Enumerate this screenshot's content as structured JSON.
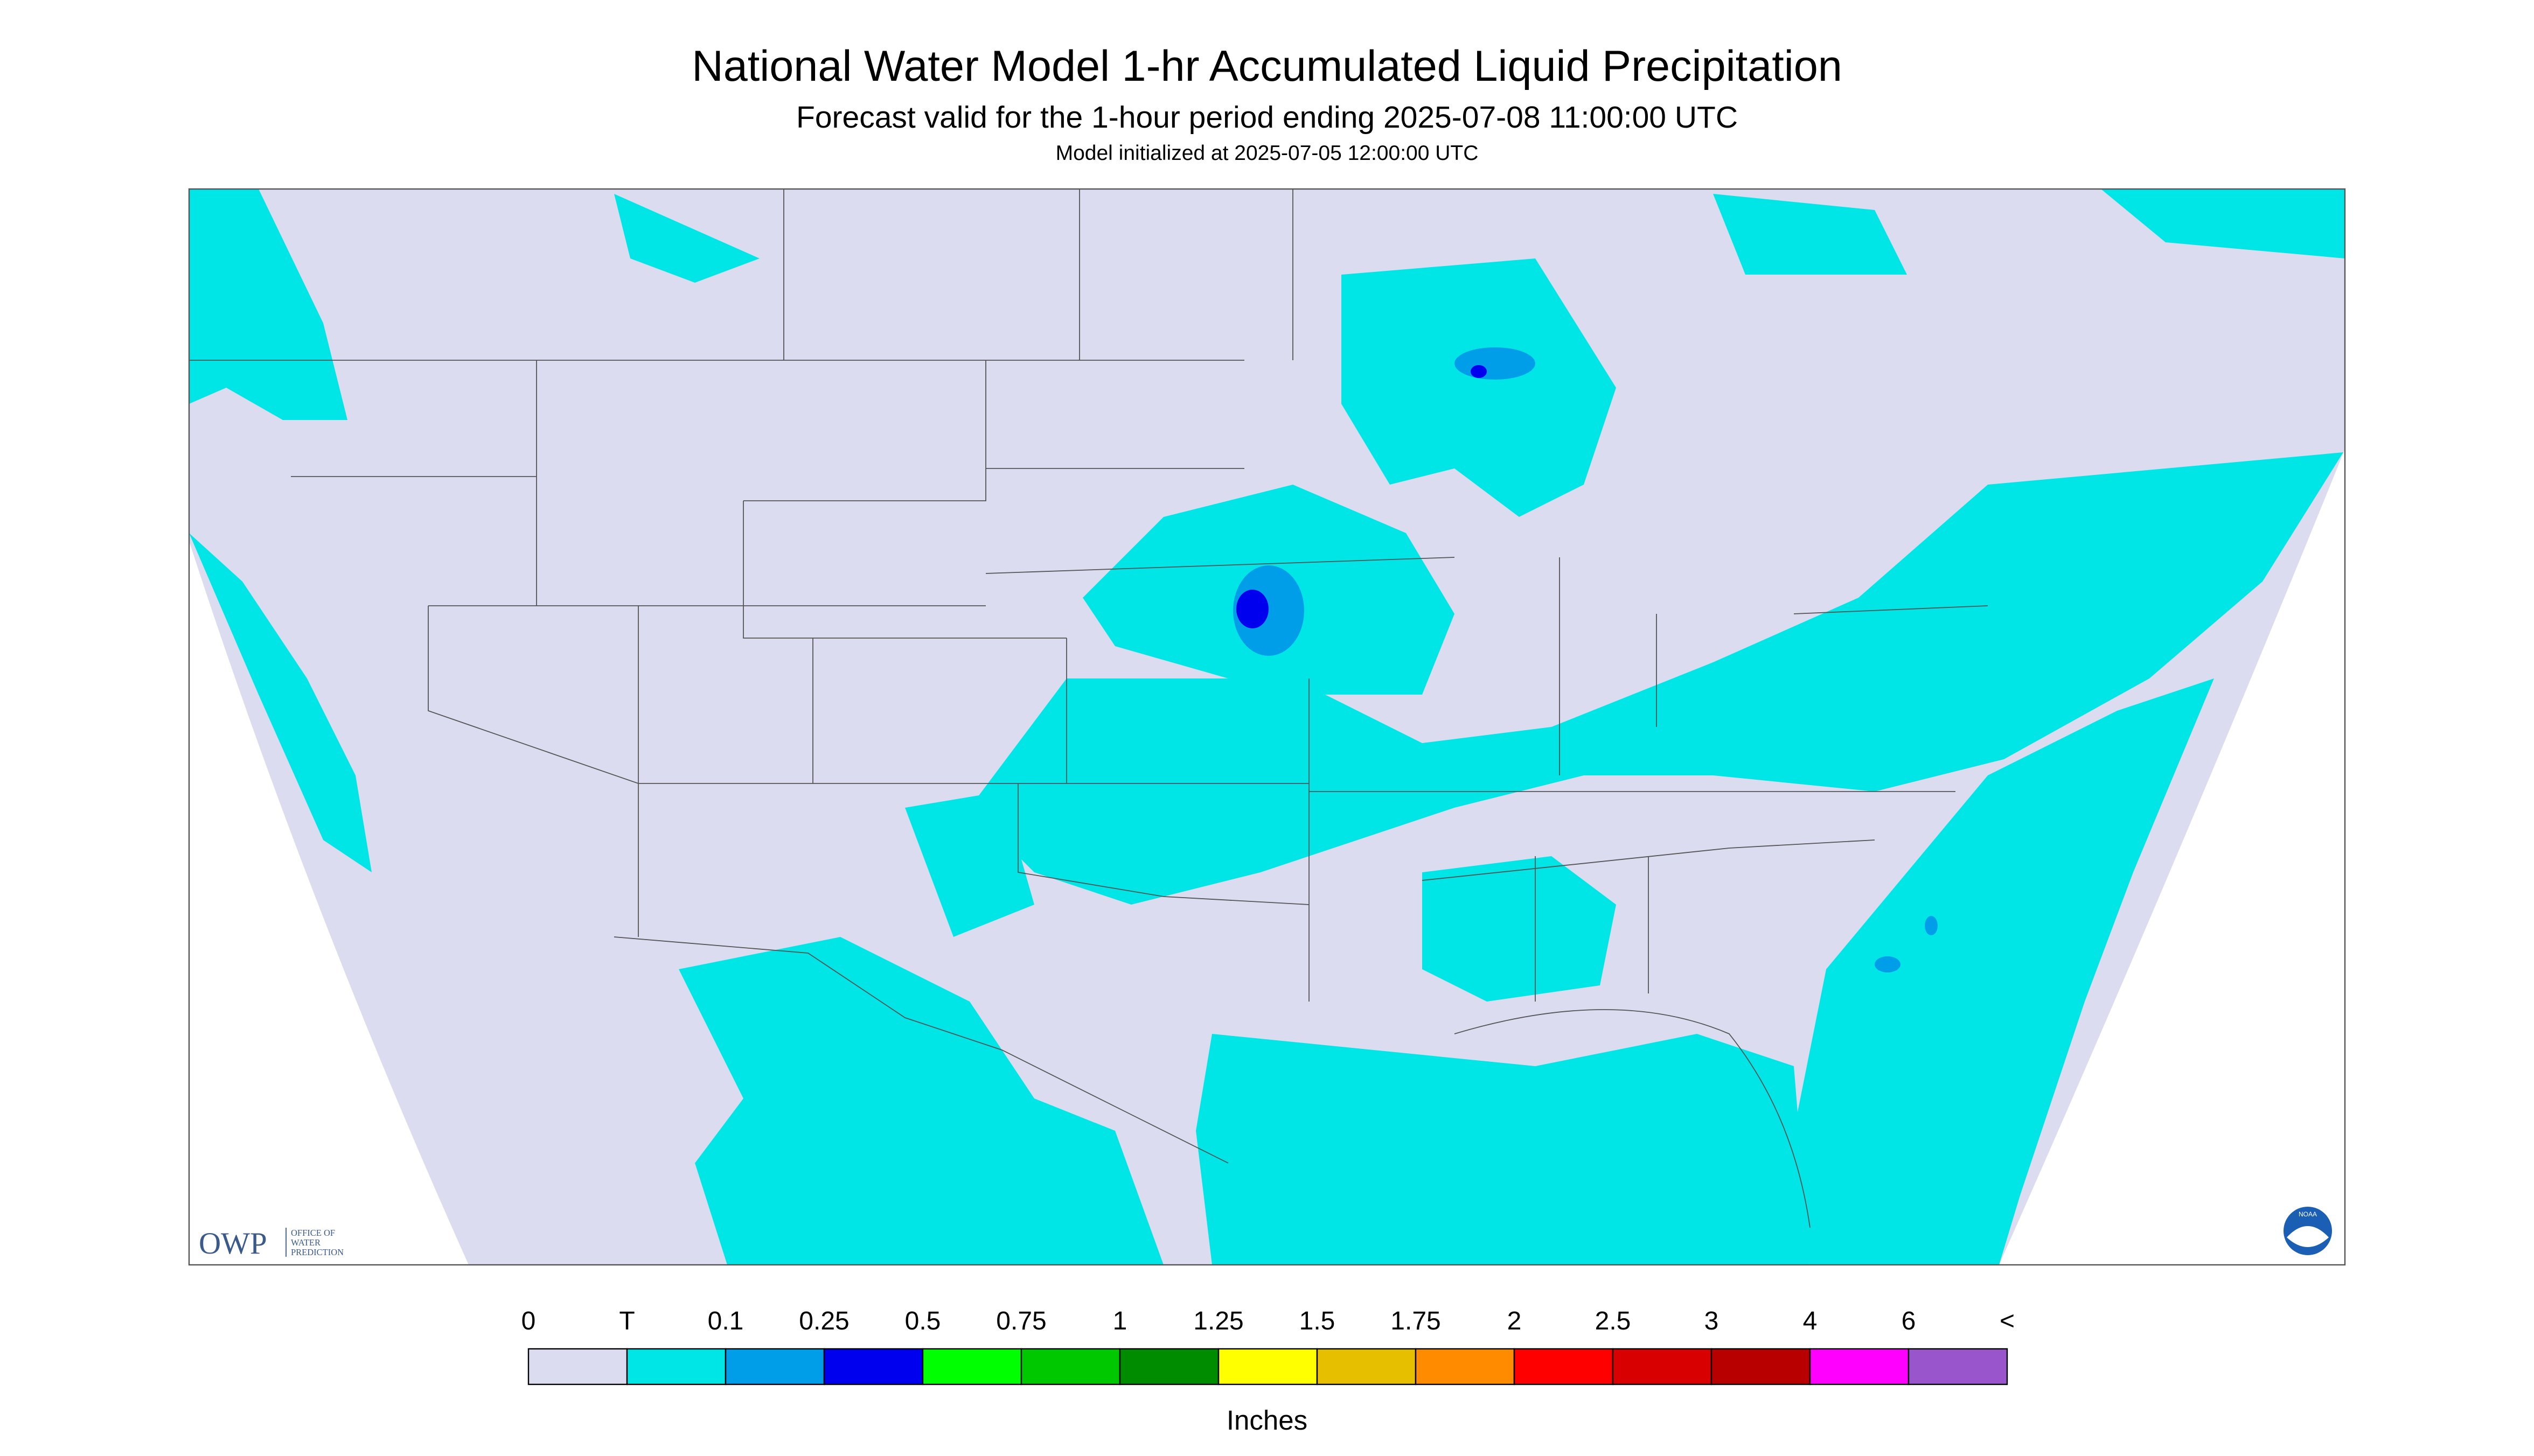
{
  "header": {
    "title": "National Water Model 1-hr Accumulated Liquid Precipitation",
    "subtitle": "Forecast valid for the 1-hour period ending 2025-07-08 11:00:00 UTC",
    "note": "Model initialized at 2025-07-05 12:00:00 UTC"
  },
  "legend": {
    "labels": [
      "0",
      "T",
      "0.1",
      "0.25",
      "0.5",
      "0.75",
      "1",
      "1.25",
      "1.5",
      "1.75",
      "2",
      "2.5",
      "3",
      "4",
      "6",
      "<"
    ],
    "colors": [
      "#dcdcf0",
      "#00e6e6",
      "#009ee8",
      "#0000ee",
      "#00ff00",
      "#00c800",
      "#008c00",
      "#ffff00",
      "#e6c000",
      "#ff8c00",
      "#ff0000",
      "#d80000",
      "#b80000",
      "#ff00ff",
      "#9955cc"
    ],
    "unit": "Inches"
  },
  "logos": {
    "owp": "OWP",
    "owp_lines": [
      "OFFICE OF",
      "WATER",
      "PREDICTION"
    ],
    "noaa": "NOAA"
  }
}
